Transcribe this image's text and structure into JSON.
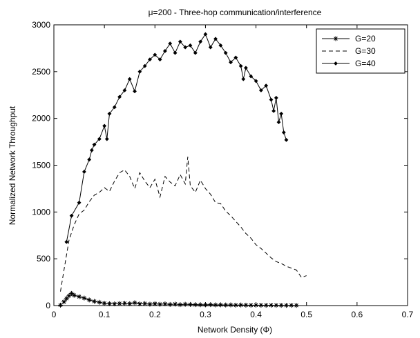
{
  "chart_data": {
    "type": "line",
    "title": "μ=200 -  Three-hop communication/interference",
    "xlabel": "Network Density (Φ)",
    "ylabel": "Normalized Network Throughput",
    "xlim": [
      0,
      0.7
    ],
    "ylim": [
      0,
      3000
    ],
    "xticks": [
      0,
      0.1,
      0.2,
      0.3,
      0.4,
      0.5,
      0.6,
      0.7
    ],
    "xtick_labels": [
      "0",
      "0.1",
      "0.2",
      "0.3",
      "0.4",
      "0.5",
      "0.6",
      "0.7"
    ],
    "yticks": [
      0,
      500,
      1000,
      1500,
      2000,
      2500,
      3000
    ],
    "ytick_labels": [
      "0",
      "500",
      "1000",
      "1500",
      "2000",
      "2500",
      "3000"
    ],
    "grid": false,
    "legend_position": "top-right",
    "series": [
      {
        "name": "G=20",
        "line_style": "solid",
        "marker": "asterisk",
        "color": "#000000",
        "x": [
          0.013,
          0.02,
          0.025,
          0.03,
          0.035,
          0.04,
          0.05,
          0.06,
          0.07,
          0.08,
          0.09,
          0.1,
          0.11,
          0.12,
          0.13,
          0.14,
          0.15,
          0.16,
          0.17,
          0.18,
          0.19,
          0.2,
          0.21,
          0.22,
          0.23,
          0.24,
          0.25,
          0.26,
          0.27,
          0.28,
          0.29,
          0.3,
          0.31,
          0.32,
          0.33,
          0.34,
          0.35,
          0.36,
          0.37,
          0.38,
          0.39,
          0.4,
          0.41,
          0.42,
          0.43,
          0.44,
          0.45,
          0.46,
          0.47,
          0.48
        ],
        "y": [
          5,
          40,
          75,
          105,
          130,
          110,
          95,
          80,
          60,
          45,
          35,
          25,
          20,
          18,
          22,
          25,
          20,
          30,
          18,
          22,
          15,
          20,
          14,
          18,
          12,
          16,
          10,
          14,
          12,
          10,
          9,
          8,
          10,
          7,
          8,
          6,
          7,
          5,
          6,
          5,
          4,
          5,
          4,
          3,
          4,
          3,
          3,
          2,
          3,
          2
        ]
      },
      {
        "name": "G=30",
        "line_style": "dashed",
        "marker": "none",
        "color": "#000000",
        "x": [
          0.013,
          0.02,
          0.03,
          0.04,
          0.05,
          0.06,
          0.07,
          0.08,
          0.09,
          0.1,
          0.11,
          0.12,
          0.13,
          0.14,
          0.15,
          0.16,
          0.17,
          0.18,
          0.19,
          0.2,
          0.21,
          0.22,
          0.23,
          0.24,
          0.25,
          0.26,
          0.265,
          0.27,
          0.28,
          0.29,
          0.3,
          0.31,
          0.32,
          0.33,
          0.34,
          0.35,
          0.36,
          0.37,
          0.38,
          0.39,
          0.4,
          0.41,
          0.42,
          0.43,
          0.44,
          0.45,
          0.46,
          0.47,
          0.48,
          0.49,
          0.5
        ],
        "y": [
          150,
          380,
          700,
          860,
          980,
          1020,
          1110,
          1180,
          1210,
          1260,
          1220,
          1330,
          1420,
          1450,
          1380,
          1250,
          1420,
          1330,
          1260,
          1350,
          1160,
          1380,
          1320,
          1280,
          1400,
          1300,
          1590,
          1280,
          1210,
          1340,
          1250,
          1190,
          1100,
          1090,
          1010,
          960,
          900,
          840,
          770,
          720,
          650,
          610,
          560,
          510,
          470,
          450,
          420,
          400,
          380,
          300,
          320
        ]
      },
      {
        "name": "G=40",
        "line_style": "solid",
        "marker": "diamond",
        "color": "#000000",
        "x": [
          0.025,
          0.035,
          0.05,
          0.06,
          0.07,
          0.075,
          0.08,
          0.09,
          0.1,
          0.105,
          0.11,
          0.12,
          0.13,
          0.14,
          0.15,
          0.16,
          0.17,
          0.18,
          0.19,
          0.2,
          0.21,
          0.22,
          0.23,
          0.24,
          0.25,
          0.26,
          0.27,
          0.28,
          0.29,
          0.3,
          0.31,
          0.32,
          0.33,
          0.34,
          0.35,
          0.36,
          0.37,
          0.375,
          0.38,
          0.39,
          0.4,
          0.41,
          0.42,
          0.43,
          0.435,
          0.44,
          0.445,
          0.45,
          0.455,
          0.46
        ],
        "y": [
          680,
          960,
          1100,
          1430,
          1560,
          1660,
          1720,
          1780,
          1920,
          1780,
          2050,
          2120,
          2230,
          2300,
          2420,
          2290,
          2500,
          2560,
          2630,
          2680,
          2630,
          2720,
          2800,
          2700,
          2820,
          2760,
          2780,
          2700,
          2820,
          2900,
          2760,
          2850,
          2780,
          2700,
          2600,
          2650,
          2560,
          2420,
          2540,
          2450,
          2400,
          2300,
          2350,
          2200,
          2080,
          2220,
          1960,
          2050,
          1850,
          1770
        ]
      }
    ]
  }
}
